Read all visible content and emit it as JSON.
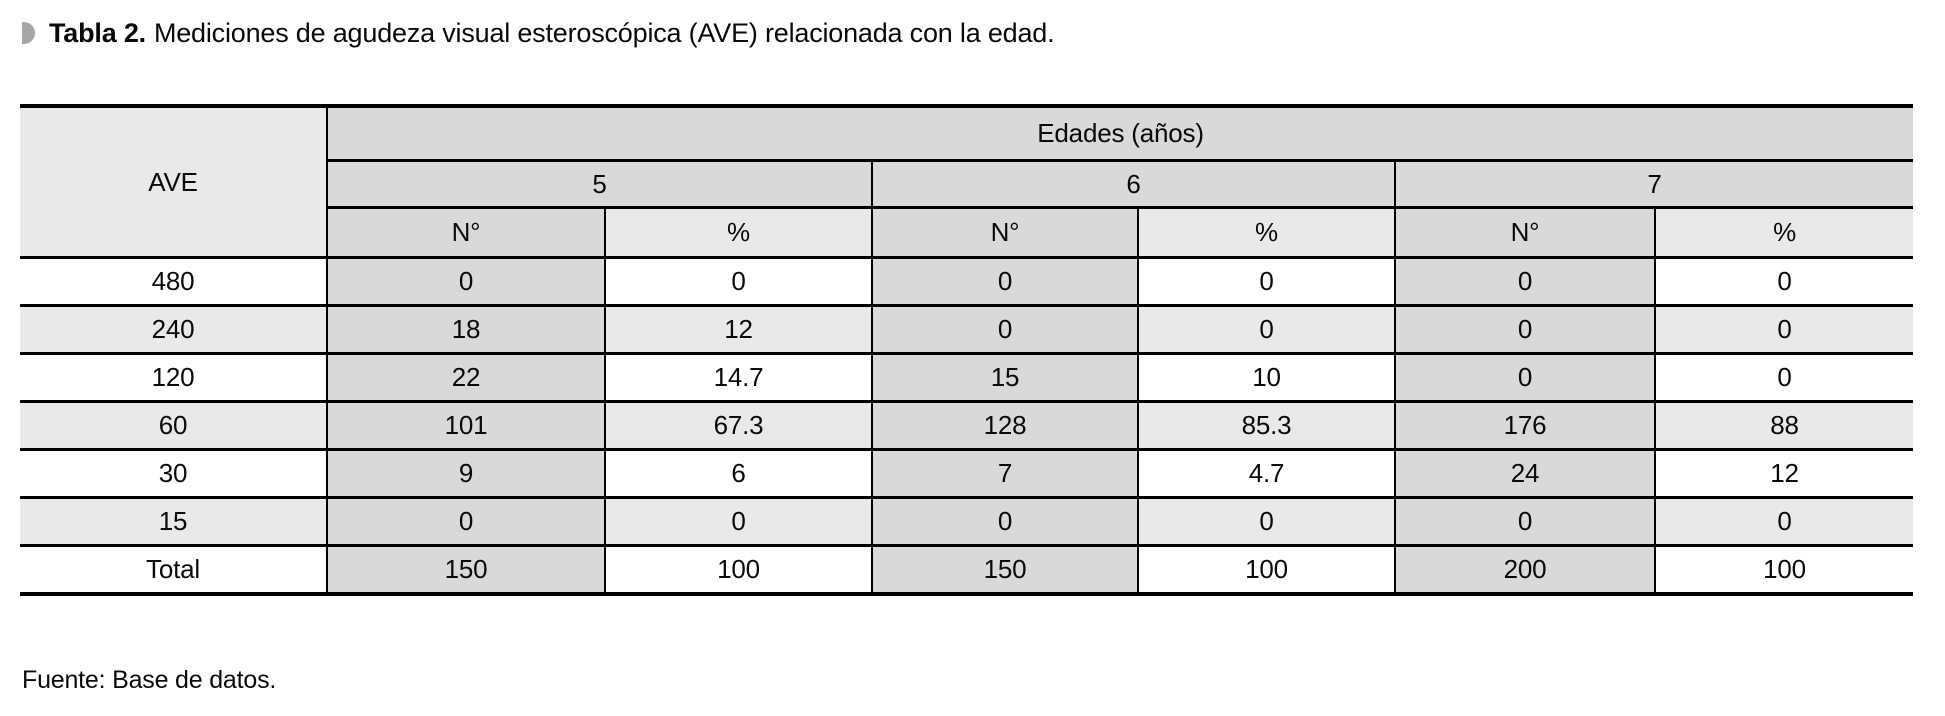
{
  "title": {
    "label": "Tabla 2.",
    "text": "Mediciones de agudeza visual esteroscópica (AVE) relacionada con la edad."
  },
  "table": {
    "corner_header": "AVE",
    "group_header": "Edades (años)",
    "age_groups": [
      "5",
      "6",
      "7"
    ],
    "sub_headers": [
      "N°",
      "%"
    ],
    "rows": [
      {
        "label": "480",
        "values": [
          "0",
          "0",
          "0",
          "0",
          "0",
          "0"
        ],
        "bold_indices": []
      },
      {
        "label": "240",
        "values": [
          "18",
          "12",
          "0",
          "0",
          "0",
          "0"
        ],
        "bold_indices": []
      },
      {
        "label": "120",
        "values": [
          "22",
          "14.7",
          "15",
          "10",
          "0",
          "0"
        ],
        "bold_indices": []
      },
      {
        "label": "60",
        "values": [
          "101",
          "67.3",
          "128",
          "85.3",
          "176",
          "88"
        ],
        "bold_indices": [
          1,
          3,
          5
        ]
      },
      {
        "label": "30",
        "values": [
          "9",
          "6",
          "7",
          "4.7",
          "24",
          "12"
        ],
        "bold_indices": []
      },
      {
        "label": "15",
        "values": [
          "0",
          "0",
          "0",
          "0",
          "0",
          "0"
        ],
        "bold_indices": []
      },
      {
        "label": "Total",
        "values": [
          "150",
          "100",
          "150",
          "100",
          "200",
          "100"
        ],
        "bold_indices": []
      }
    ]
  },
  "footer": {
    "text": "Fuente: Base de datos."
  },
  "colors": {
    "cell_dark_gray": "#d9d9d9",
    "cell_light_gray": "#e9e9e9",
    "bullet_gray": "#a6a6a6",
    "border_black": "#000000"
  }
}
